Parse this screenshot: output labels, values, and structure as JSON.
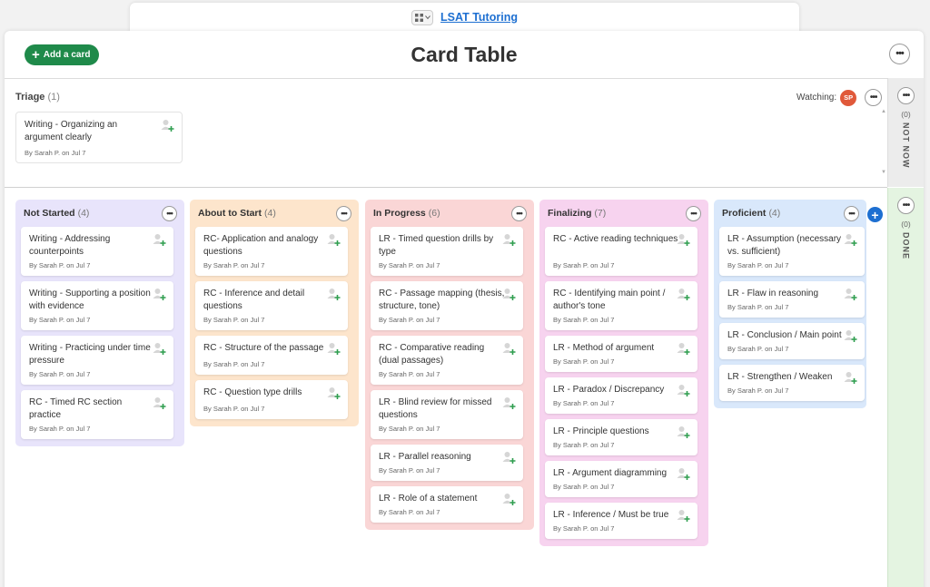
{
  "project": {
    "name": "LSAT Tutoring"
  },
  "header": {
    "add_card_label": "Add a card",
    "title": "Card Table"
  },
  "triage": {
    "label": "Triage",
    "count": "(1)",
    "watching_label": "Watching:",
    "watcher_initials": "SP",
    "cards": [
      {
        "title": "Writing - Organizing an argument clearly",
        "meta": "By Sarah P. on Jul 7"
      }
    ]
  },
  "not_now": {
    "count": "(0)",
    "label": "NOT NOW"
  },
  "done": {
    "count": "(0)",
    "label": "DONE"
  },
  "columns": [
    {
      "name": "Not Started",
      "count": "(4)",
      "color": "#e8e4fb",
      "cards": [
        {
          "title": "Writing - Addressing counterpoints",
          "meta": "By Sarah P. on Jul 7"
        },
        {
          "title": "Writing - Supporting a position with evidence",
          "meta": "By Sarah P. on Jul 7"
        },
        {
          "title": "Writing - Practicing under time pressure",
          "meta": "By Sarah P. on Jul 7"
        },
        {
          "title": "RC - Timed RC section practice",
          "meta": "By Sarah P. on Jul 7"
        }
      ]
    },
    {
      "name": "About to Start",
      "count": "(4)",
      "color": "#fde5cc",
      "cards": [
        {
          "title": "RC- Application and analogy questions",
          "meta": "By Sarah P. on Jul 7"
        },
        {
          "title": "RC - Inference and detail questions",
          "meta": "By Sarah P. on Jul 7"
        },
        {
          "title": "RC - Structure of the passage",
          "meta": "By Sarah P. on Jul 7"
        },
        {
          "title": "RC - Question type drills",
          "meta": "By Sarah P. on Jul 7"
        }
      ]
    },
    {
      "name": "In Progress",
      "count": "(6)",
      "color": "#fad6d6",
      "cards": [
        {
          "title": "LR - Timed question drills by type",
          "meta": "By Sarah P. on Jul 7"
        },
        {
          "title": "RC - Passage mapping (thesis, structure, tone)",
          "meta": "By Sarah P. on Jul 7"
        },
        {
          "title": "RC - Comparative reading (dual passages)",
          "meta": "By Sarah P. on Jul 7"
        },
        {
          "title": "LR - Blind review for missed questions",
          "meta": "By Sarah P. on Jul 7"
        },
        {
          "title": "LR - Parallel reasoning",
          "meta": "By Sarah P. on Jul 7"
        },
        {
          "title": "LR - Role of a statement",
          "meta": "By Sarah P. on Jul 7"
        }
      ]
    },
    {
      "name": "Finalizing",
      "count": "(7)",
      "color": "#f7d3ef",
      "cards": [
        {
          "title": "RC - Active reading techniques",
          "meta": "By Sarah P. on Jul 7"
        },
        {
          "title": "RC - Identifying main point / author's tone",
          "meta": "By Sarah P. on Jul 7"
        },
        {
          "title": "LR - Method of argument",
          "meta": "By Sarah P. on Jul 7"
        },
        {
          "title": "LR - Paradox / Discrepancy",
          "meta": "By Sarah P. on Jul 7"
        },
        {
          "title": "LR - Principle questions",
          "meta": "By Sarah P. on Jul 7"
        },
        {
          "title": "LR - Argument diagramming",
          "meta": "By Sarah P. on Jul 7"
        },
        {
          "title": "LR - Inference / Must be true",
          "meta": "By Sarah P. on Jul 7"
        }
      ]
    },
    {
      "name": "Proficient",
      "count": "(4)",
      "color": "#d9e8fb",
      "cards": [
        {
          "title": "LR - Assumption (necessary vs. sufficient)",
          "meta": "By Sarah P. on Jul 7"
        },
        {
          "title": "LR - Flaw in reasoning",
          "meta": "By Sarah P. on Jul 7"
        },
        {
          "title": "LR - Conclusion / Main point",
          "meta": "By Sarah P. on Jul 7"
        },
        {
          "title": "LR - Strengthen / Weaken",
          "meta": "By Sarah P. on Jul 7"
        }
      ]
    }
  ],
  "icons": {
    "view_switcher": "grid-icon",
    "card_more": "ellipsis-icon",
    "assign": "add-assignee-icon",
    "add_column": "plus-icon"
  },
  "colors": {
    "add_button": "#1f8a4a",
    "link": "#1d6fd1",
    "done_strip": "#e4f4e1",
    "watcher_avatar": "#e0593a"
  }
}
